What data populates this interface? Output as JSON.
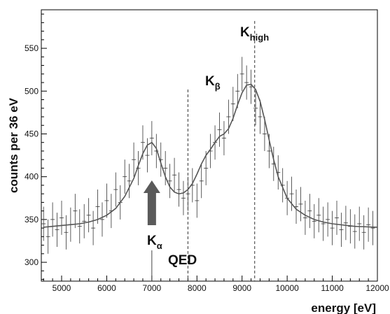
{
  "chart_data": {
    "type": "scatter",
    "title": "",
    "xlabel": "energy [eV]",
    "ylabel": "counts per 36 eV",
    "xlim": [
      4550,
      12000
    ],
    "ylim": [
      278,
      595
    ],
    "xticks": [
      5000,
      6000,
      7000,
      8000,
      9000,
      10000,
      11000,
      12000
    ],
    "yticks": [
      300,
      350,
      400,
      450,
      500,
      550
    ],
    "grid": false,
    "legend": "none",
    "series": [
      {
        "style": "points-with-error-bars",
        "x": [
          4600,
          4700,
          4800,
          4900,
          5000,
          5100,
          5200,
          5300,
          5400,
          5500,
          5600,
          5700,
          5800,
          5900,
          6000,
          6100,
          6200,
          6300,
          6400,
          6500,
          6600,
          6700,
          6800,
          6900,
          7000,
          7100,
          7200,
          7300,
          7400,
          7500,
          7600,
          7700,
          7800,
          7900,
          8000,
          8100,
          8200,
          8300,
          8400,
          8500,
          8600,
          8700,
          8800,
          8900,
          9000,
          9100,
          9200,
          9300,
          9400,
          9500,
          9600,
          9700,
          9800,
          9900,
          10000,
          10100,
          10200,
          10300,
          10400,
          10500,
          10600,
          10700,
          10800,
          10900,
          11000,
          11100,
          11200,
          11300,
          11400,
          11500,
          11600,
          11700,
          11800,
          11900
        ],
        "y": [
          345,
          330,
          350,
          338,
          352,
          335,
          344,
          360,
          342,
          348,
          355,
          340,
          365,
          350,
          372,
          360,
          385,
          370,
          400,
          395,
          420,
          410,
          440,
          425,
          445,
          430,
          420,
          410,
          395,
          402,
          385,
          375,
          380,
          390,
          372,
          395,
          410,
          430,
          440,
          455,
          445,
          470,
          485,
          500,
          520,
          510,
          505,
          480,
          470,
          450,
          430,
          415,
          405,
          390,
          375,
          380,
          365,
          368,
          352,
          360,
          348,
          355,
          345,
          350,
          340,
          352,
          338,
          346,
          342,
          336,
          345,
          335,
          344,
          340
        ],
        "yerr": 20
      },
      {
        "style": "fit-line",
        "x": [
          4600,
          4800,
          5000,
          5200,
          5400,
          5600,
          5800,
          6000,
          6200,
          6400,
          6600,
          6700,
          6800,
          6900,
          7000,
          7100,
          7200,
          7300,
          7400,
          7500,
          7600,
          7700,
          7800,
          7900,
          8000,
          8100,
          8200,
          8300,
          8400,
          8500,
          8600,
          8700,
          8800,
          8900,
          9000,
          9100,
          9200,
          9300,
          9400,
          9500,
          9600,
          9700,
          9800,
          10000,
          10200,
          10400,
          10600,
          10800,
          11000,
          11500,
          12000
        ],
        "y": [
          341,
          342,
          343,
          344,
          345,
          347,
          350,
          355,
          363,
          377,
          398,
          413,
          427,
          437,
          440,
          433,
          416,
          400,
          388,
          382,
          380,
          381,
          385,
          392,
          403,
          415,
          425,
          432,
          440,
          447,
          450,
          456,
          468,
          484,
          498,
          507,
          508,
          502,
          488,
          467,
          443,
          420,
          400,
          375,
          362,
          355,
          350,
          347,
          345,
          342,
          341
        ]
      }
    ],
    "annotations": [
      {
        "text": "K",
        "sub": "α",
        "x": 7000,
        "kind": "arrow-up"
      },
      {
        "text": "QED",
        "x": 7800,
        "kind": "dashed-line"
      },
      {
        "text": "K",
        "sub": "β",
        "x": 8550
      },
      {
        "text": "K",
        "sub": "high",
        "x": 9280,
        "kind": "dashed-line"
      }
    ]
  }
}
